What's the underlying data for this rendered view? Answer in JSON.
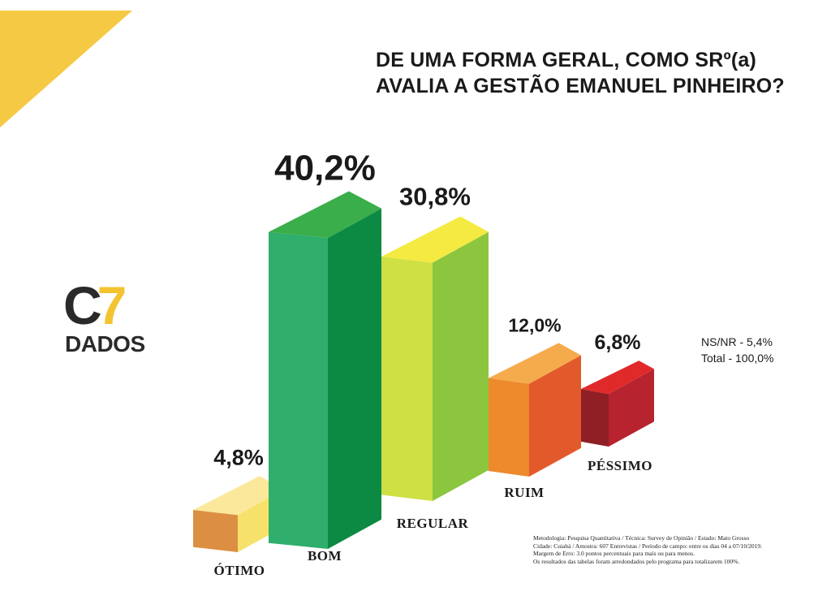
{
  "title": {
    "line1": "DE UMA FORMA GERAL, COMO SRº(a)",
    "line2": "AVALIA A GESTÃO EMANUEL PINHEIRO?"
  },
  "logo": {
    "c": "C",
    "seven": "7",
    "dados": "DADOS"
  },
  "colors": {
    "corner": "#f6c945",
    "logo_accent": "#f4c430",
    "logo_dark": "#2a2a2a"
  },
  "chart_data": {
    "type": "bar",
    "style": "3d-columns",
    "categories": [
      "ÓTIMO",
      "BOM",
      "REGULAR",
      "RUIM",
      "PÉSSIMO"
    ],
    "values": [
      4.8,
      40.2,
      30.8,
      12.0,
      6.8
    ],
    "value_labels": [
      "4,8%",
      "40,2%",
      "30,8%",
      "12,0%",
      "6,8%"
    ],
    "bar_colors": [
      {
        "top": "#fbe89a",
        "front": "#dc8f43",
        "side": "#f6e26a"
      },
      {
        "top": "#3aae4a",
        "front": "#2fae6c",
        "side": "#0c8a44"
      },
      {
        "top": "#f4ea42",
        "front": "#cfe044",
        "side": "#8cc63f"
      },
      {
        "top": "#f5ab4c",
        "front": "#ec8a2c",
        "side": "#e25a2c"
      },
      {
        "top": "#e02a2a",
        "front": "#8f1f25",
        "side": "#b7232e"
      }
    ],
    "ylim": [
      0,
      40.2
    ],
    "grid": false,
    "legend": "none"
  },
  "notes": {
    "nsnr": "NS/NR - 5,4%",
    "total": "Total - 100,0%"
  },
  "methodology": [
    "Metodologia: Pesquisa Quantitativa / Técnica: Survey de Opinião / Estado: Mato Grosso",
    "Cidade: Cuiabá / Amostra: 607 Entrevistas / Período de campo: entre os dias 04 a 07/10/2019.",
    "Margem de Erro: 3.0 pontos percentuais para mais ou para menos.",
    "Os resultados das tabelas foram arredondados pelo programa para totalizarem 100%."
  ]
}
